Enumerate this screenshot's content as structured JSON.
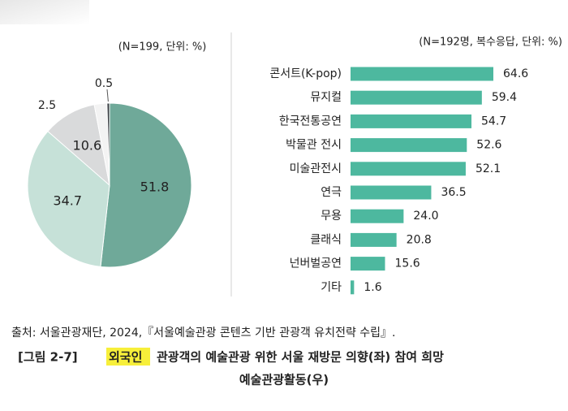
{
  "chart_data": [
    {
      "type": "pie",
      "note": "(N=199, 단위: %)",
      "values": [
        51.8,
        34.7,
        10.6,
        2.5,
        0.5
      ],
      "colors": [
        "#6fa999",
        "#c6e1d8",
        "#d9dadb",
        "#f3f3f3",
        "#3b4045"
      ]
    },
    {
      "type": "barh",
      "note": "(N=192명, 복수응답, 단위: %)",
      "categories": [
        "콘서트(K-pop)",
        "뮤지컬",
        "한국전통공연",
        "박물관 전시",
        "미술관전시",
        "연극",
        "무용",
        "클래식",
        "넌버벌공연",
        "기타"
      ],
      "values": [
        64.6,
        59.4,
        54.7,
        52.6,
        52.1,
        36.5,
        24.0,
        20.8,
        15.6,
        1.6
      ],
      "value_labels": [
        "64.6",
        "59.4",
        "54.7",
        "52.6",
        "52.1",
        "36.5",
        "24.0",
        "20.8",
        "15.6",
        "1.6"
      ],
      "color": "#4db89f"
    }
  ],
  "source": "출처: 서울관광재단, 2024,『서울예술관광 콘텐츠 기반 관광객 유치전략 수립』.",
  "caption": {
    "label": "[그림 2-7]",
    "highlight": "외국인",
    "line1": "관광객의 예술관광 위한 서울 재방문 의향(좌) 참여 희망",
    "line2": "예술관광활동(우)"
  }
}
